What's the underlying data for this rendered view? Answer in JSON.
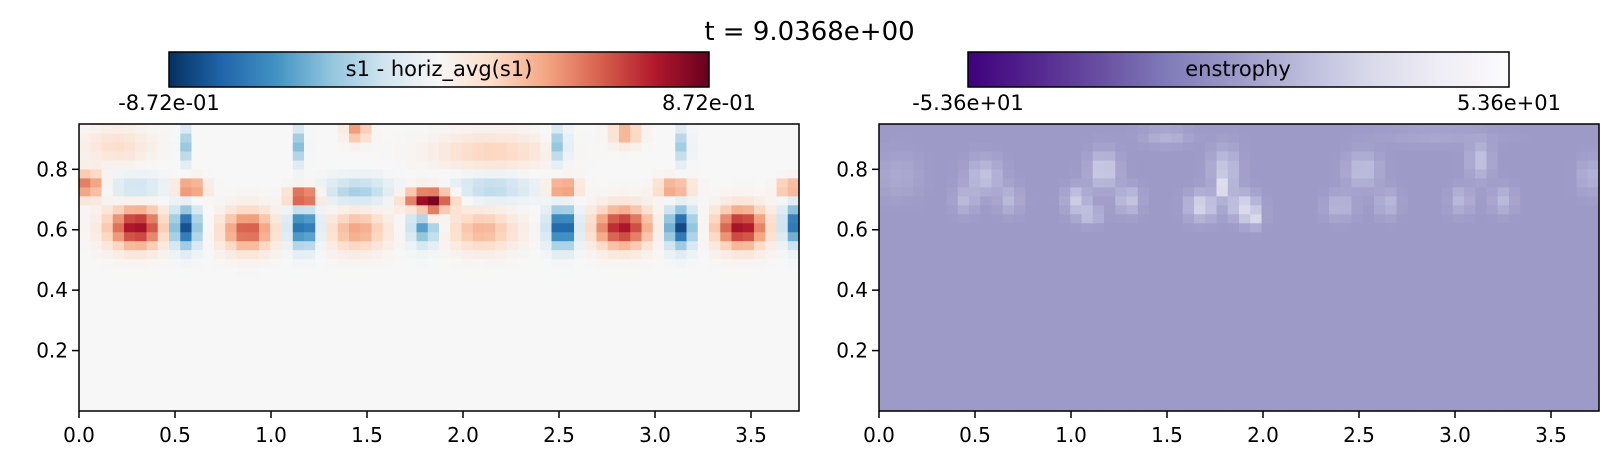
{
  "figure": {
    "suptitle": "t = 9.0368e+00"
  },
  "chart_data": [
    {
      "type": "heatmap",
      "colorbar": {
        "label": "s1 - horiz_avg(s1)",
        "min_label": "-8.72e-01",
        "max_label": "8.72e-01",
        "colormap": "RdBu_r",
        "stops": [
          "#053061",
          "#2166ac",
          "#4393c3",
          "#92c5de",
          "#d1e5f0",
          "#f7f7f7",
          "#fddbc7",
          "#f4a582",
          "#d6604d",
          "#b2182b",
          "#67001f"
        ]
      },
      "xlim": [
        0,
        3.75
      ],
      "ylim": [
        0,
        0.95
      ],
      "xticks": [
        0.0,
        0.5,
        1.0,
        1.5,
        2.0,
        2.5,
        3.0,
        3.5
      ],
      "xtick_labels": [
        "0.0",
        "0.5",
        "1.0",
        "1.5",
        "2.0",
        "2.5",
        "3.0",
        "3.5"
      ],
      "yticks": [
        0.2,
        0.4,
        0.6,
        0.8
      ],
      "ytick_labels": [
        "0.2",
        "0.4",
        "0.6",
        "0.8"
      ],
      "grid": {
        "nx": 64,
        "ny": 32
      },
      "features": [
        {
          "x": 0.3,
          "y": 0.61,
          "sx": 0.1,
          "sy": 0.045,
          "amp": 0.75
        },
        {
          "x": 0.55,
          "y": 0.61,
          "sx": 0.05,
          "sy": 0.045,
          "amp": -0.8
        },
        {
          "x": 0.88,
          "y": 0.6,
          "sx": 0.09,
          "sy": 0.045,
          "amp": 0.55
        },
        {
          "x": 1.17,
          "y": 0.61,
          "sx": 0.05,
          "sy": 0.045,
          "amp": -0.75
        },
        {
          "x": 1.45,
          "y": 0.6,
          "sx": 0.1,
          "sy": 0.045,
          "amp": 0.35
        },
        {
          "x": 1.8,
          "y": 0.62,
          "sx": 0.05,
          "sy": 0.045,
          "amp": -0.55
        },
        {
          "x": 2.1,
          "y": 0.6,
          "sx": 0.12,
          "sy": 0.045,
          "amp": 0.3
        },
        {
          "x": 2.52,
          "y": 0.61,
          "sx": 0.05,
          "sy": 0.045,
          "amp": -0.82
        },
        {
          "x": 2.83,
          "y": 0.61,
          "sx": 0.1,
          "sy": 0.045,
          "amp": 0.72
        },
        {
          "x": 3.13,
          "y": 0.61,
          "sx": 0.05,
          "sy": 0.045,
          "amp": -0.8
        },
        {
          "x": 3.45,
          "y": 0.61,
          "sx": 0.09,
          "sy": 0.045,
          "amp": 0.75
        },
        {
          "x": 3.72,
          "y": 0.62,
          "sx": 0.04,
          "sy": 0.045,
          "amp": -0.65
        },
        {
          "x": 0.05,
          "y": 0.75,
          "sx": 0.05,
          "sy": 0.03,
          "amp": 0.5
        },
        {
          "x": 0.58,
          "y": 0.74,
          "sx": 0.05,
          "sy": 0.02,
          "amp": 0.55
        },
        {
          "x": 1.17,
          "y": 0.71,
          "sx": 0.05,
          "sy": 0.02,
          "amp": 0.85
        },
        {
          "x": 1.82,
          "y": 0.7,
          "sx": 0.08,
          "sy": 0.025,
          "amp": 0.95
        },
        {
          "x": 1.82,
          "y": 0.65,
          "sx": 0.02,
          "sy": 0.02,
          "amp": 0.85
        },
        {
          "x": 2.52,
          "y": 0.74,
          "sx": 0.05,
          "sy": 0.02,
          "amp": 0.55
        },
        {
          "x": 3.1,
          "y": 0.74,
          "sx": 0.06,
          "sy": 0.02,
          "amp": 0.45
        },
        {
          "x": 3.7,
          "y": 0.74,
          "sx": 0.04,
          "sy": 0.02,
          "amp": 0.45
        },
        {
          "x": 0.3,
          "y": 0.74,
          "sx": 0.1,
          "sy": 0.03,
          "amp": -0.2
        },
        {
          "x": 1.45,
          "y": 0.73,
          "sx": 0.12,
          "sy": 0.03,
          "amp": -0.3
        },
        {
          "x": 2.15,
          "y": 0.74,
          "sx": 0.15,
          "sy": 0.03,
          "amp": -0.25
        },
        {
          "x": 0.55,
          "y": 0.88,
          "sx": 0.02,
          "sy": 0.04,
          "amp": -0.35
        },
        {
          "x": 1.15,
          "y": 0.88,
          "sx": 0.02,
          "sy": 0.04,
          "amp": -0.4
        },
        {
          "x": 1.45,
          "y": 0.93,
          "sx": 0.04,
          "sy": 0.025,
          "amp": 0.4
        },
        {
          "x": 2.5,
          "y": 0.88,
          "sx": 0.03,
          "sy": 0.04,
          "amp": -0.4
        },
        {
          "x": 2.85,
          "y": 0.92,
          "sx": 0.05,
          "sy": 0.025,
          "amp": 0.35
        },
        {
          "x": 3.15,
          "y": 0.88,
          "sx": 0.02,
          "sy": 0.04,
          "amp": -0.4
        },
        {
          "x": 2.15,
          "y": 0.86,
          "sx": 0.2,
          "sy": 0.04,
          "amp": 0.2
        },
        {
          "x": 0.2,
          "y": 0.88,
          "sx": 0.12,
          "sy": 0.04,
          "amp": 0.15
        }
      ]
    },
    {
      "type": "heatmap",
      "colorbar": {
        "label": "enstrophy",
        "min_label": "-5.36e+01",
        "max_label": "5.36e+01",
        "colormap": "Purples_r",
        "stops": [
          "#3f007d",
          "#54278f",
          "#6a51a3",
          "#807dba",
          "#9e9ac8",
          "#bcbddc",
          "#dadaeb",
          "#efedf5",
          "#fcfbfd"
        ]
      },
      "xlim": [
        0,
        3.75
      ],
      "ylim": [
        0,
        0.95
      ],
      "xticks": [
        0.0,
        0.5,
        1.0,
        1.5,
        2.0,
        2.5,
        3.0,
        3.5
      ],
      "xtick_labels": [
        "0.0",
        "0.5",
        "1.0",
        "1.5",
        "2.0",
        "2.5",
        "3.0",
        "3.5"
      ],
      "yticks": [
        0.2,
        0.4,
        0.6,
        0.8
      ],
      "ytick_labels": [
        "0.2",
        "0.4",
        "0.6",
        "0.8"
      ],
      "grid": {
        "nx": 64,
        "ny": 32
      },
      "background_value": 0.0,
      "features": [
        {
          "x": 0.55,
          "y": 0.78,
          "sx": 0.06,
          "sy": 0.04,
          "amp": 16
        },
        {
          "x": 0.45,
          "y": 0.7,
          "sx": 0.04,
          "sy": 0.03,
          "amp": 12
        },
        {
          "x": 0.68,
          "y": 0.7,
          "sx": 0.04,
          "sy": 0.03,
          "amp": 12
        },
        {
          "x": 1.17,
          "y": 0.8,
          "sx": 0.05,
          "sy": 0.04,
          "amp": 22
        },
        {
          "x": 1.03,
          "y": 0.7,
          "sx": 0.04,
          "sy": 0.03,
          "amp": 20
        },
        {
          "x": 1.3,
          "y": 0.7,
          "sx": 0.04,
          "sy": 0.03,
          "amp": 18
        },
        {
          "x": 1.1,
          "y": 0.65,
          "sx": 0.04,
          "sy": 0.02,
          "amp": 16
        },
        {
          "x": 1.8,
          "y": 0.8,
          "sx": 0.05,
          "sy": 0.05,
          "amp": 18
        },
        {
          "x": 1.68,
          "y": 0.68,
          "sx": 0.05,
          "sy": 0.03,
          "amp": 26
        },
        {
          "x": 1.9,
          "y": 0.68,
          "sx": 0.05,
          "sy": 0.03,
          "amp": 26
        },
        {
          "x": 1.8,
          "y": 0.74,
          "sx": 0.02,
          "sy": 0.02,
          "amp": 30
        },
        {
          "x": 1.95,
          "y": 0.64,
          "sx": 0.03,
          "sy": 0.02,
          "amp": 24
        },
        {
          "x": 2.52,
          "y": 0.8,
          "sx": 0.06,
          "sy": 0.04,
          "amp": 15
        },
        {
          "x": 2.4,
          "y": 0.68,
          "sx": 0.05,
          "sy": 0.03,
          "amp": 12
        },
        {
          "x": 2.65,
          "y": 0.69,
          "sx": 0.04,
          "sy": 0.03,
          "amp": 12
        },
        {
          "x": 3.13,
          "y": 0.83,
          "sx": 0.04,
          "sy": 0.04,
          "amp": 16
        },
        {
          "x": 3.03,
          "y": 0.7,
          "sx": 0.04,
          "sy": 0.03,
          "amp": 12
        },
        {
          "x": 3.25,
          "y": 0.7,
          "sx": 0.04,
          "sy": 0.03,
          "amp": 12
        },
        {
          "x": 3.7,
          "y": 0.78,
          "sx": 0.04,
          "sy": 0.04,
          "amp": 10
        },
        {
          "x": 0.1,
          "y": 0.78,
          "sx": 0.08,
          "sy": 0.05,
          "amp": 6
        },
        {
          "x": 1.5,
          "y": 0.91,
          "sx": 0.08,
          "sy": 0.02,
          "amp": 10
        },
        {
          "x": 2.9,
          "y": 0.91,
          "sx": 0.2,
          "sy": 0.02,
          "amp": 5
        }
      ]
    }
  ]
}
